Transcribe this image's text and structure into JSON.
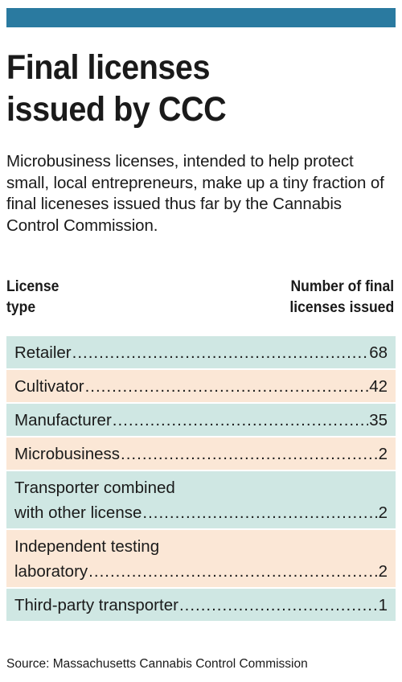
{
  "chart_data": {
    "type": "table",
    "title": "Final licenses issued by CCC",
    "subtitle": "Microbusiness licenses, intended to help protect small, local entrepreneurs, make up a tiny fraction of final liceneses issued thus far by the Cannabis Control Commission.",
    "columns": [
      "License type",
      "Number of final licenses issued"
    ],
    "categories": [
      "Retailer",
      "Cultivator",
      "Manufacturer",
      "Microbusiness",
      "Transporter combined with other license",
      "Independent testing laboratory",
      "Third-party transporter"
    ],
    "values": [
      68,
      42,
      35,
      2,
      2,
      2,
      1
    ],
    "source": "Source: Massachusetts Cannabis Control Commission"
  },
  "header": {
    "title_line1": "Final licenses",
    "title_line2": "issued by CCC",
    "subtitle": "Microbusiness licenses, intended to help protect small, local entrepreneurs, make up a tiny fraction of final liceneses issued thus far by the Cannabis Control Commission."
  },
  "table": {
    "col_left_line1": "License",
    "col_left_line2": "type",
    "col_right_line1": "Number of final",
    "col_right_line2": "licenses issued",
    "rows": [
      {
        "label_lines": [
          "Retailer"
        ],
        "value": "68"
      },
      {
        "label_lines": [
          "Cultivator"
        ],
        "value": "42"
      },
      {
        "label_lines": [
          "Manufacturer"
        ],
        "value": "35"
      },
      {
        "label_lines": [
          "Microbusiness"
        ],
        "value": "2"
      },
      {
        "label_lines": [
          "Transporter combined",
          "with other license"
        ],
        "value": "2"
      },
      {
        "label_lines": [
          "Independent testing",
          "laboratory"
        ],
        "value": "2"
      },
      {
        "label_lines": [
          "Third-party transporter"
        ],
        "value": "1"
      }
    ]
  },
  "footer": {
    "source": "Source: Massachusetts Cannabis Control Commission"
  },
  "colors": {
    "top_bar": "#2a7aa0",
    "row_teal": "#cfe7e3",
    "row_peach": "#fbe7d6"
  }
}
